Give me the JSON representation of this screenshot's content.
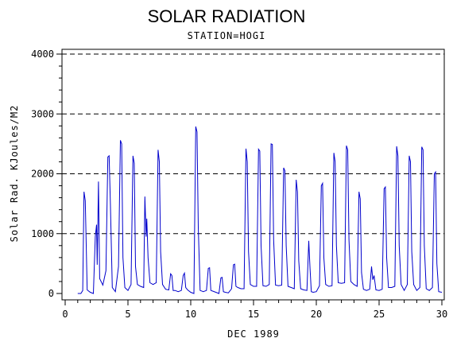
{
  "chart_data": {
    "type": "line",
    "title": "SOLAR RADIATION",
    "subtitle": "STATION=HOGI",
    "xlabel": "DEC 1989",
    "ylabel": "Solar Rad. KJoules/M2",
    "xlim": [
      0,
      30
    ],
    "ylim": [
      0,
      4000
    ],
    "xticks": [
      0,
      5,
      10,
      15,
      20,
      25,
      30
    ],
    "xtick_labels": [
      "0",
      "5",
      "10",
      "15",
      "20",
      "25",
      "30"
    ],
    "yticks": [
      0,
      1000,
      2000,
      3000,
      4000
    ],
    "ytick_labels": [
      "0",
      "1000",
      "2000",
      "3000",
      "4000"
    ],
    "grid": "horizontal dashed",
    "line_color": "#0000cc",
    "series": [
      {
        "x": [
          1.0,
          1.25,
          1.4,
          1.5,
          1.6,
          1.75,
          2.0,
          2.25,
          2.4,
          2.5,
          2.55,
          2.6,
          2.65,
          2.75,
          3.0,
          3.25,
          3.4,
          3.5,
          3.6,
          3.75,
          4.0,
          4.25,
          4.4,
          4.5,
          4.6,
          4.75,
          5.0,
          5.25,
          5.4,
          5.5,
          5.6,
          5.75,
          6.0,
          6.25,
          6.35,
          6.45,
          6.5,
          6.6,
          6.75,
          7.0,
          7.25,
          7.4,
          7.5,
          7.6,
          7.75,
          8.0,
          8.25,
          8.4,
          8.5,
          8.6,
          8.75,
          9.0,
          9.25,
          9.4,
          9.5,
          9.6,
          9.75,
          10.0,
          10.25,
          10.4,
          10.5,
          10.6,
          10.75,
          11.0,
          11.25,
          11.4,
          11.5,
          11.6,
          11.75,
          12.0,
          12.25,
          12.4,
          12.5,
          12.6,
          12.75,
          13.0,
          13.25,
          13.4,
          13.5,
          13.6,
          13.75,
          14.0,
          14.25,
          14.4,
          14.5,
          14.6,
          14.75,
          15.0,
          15.25,
          15.4,
          15.5,
          15.6,
          15.75,
          16.0,
          16.25,
          16.4,
          16.5,
          16.6,
          16.75,
          17.0,
          17.25,
          17.4,
          17.5,
          17.6,
          17.75,
          18.0,
          18.25,
          18.4,
          18.5,
          18.6,
          18.75,
          19.0,
          19.25,
          19.4,
          19.5,
          19.6,
          19.75,
          20.0,
          20.25,
          20.4,
          20.5,
          20.6,
          20.75,
          21.0,
          21.25,
          21.4,
          21.5,
          21.6,
          21.75,
          22.0,
          22.25,
          22.4,
          22.5,
          22.6,
          22.75,
          23.0,
          23.25,
          23.4,
          23.5,
          23.6,
          23.75,
          24.0,
          24.25,
          24.4,
          24.5,
          24.6,
          24.75,
          25.0,
          25.25,
          25.4,
          25.5,
          25.6,
          25.75,
          26.0,
          26.25,
          26.4,
          26.5,
          26.6,
          26.75,
          27.0,
          27.25,
          27.4,
          27.5,
          27.6,
          27.75,
          28.0,
          28.25,
          28.4,
          28.5,
          28.6,
          28.75,
          29.0,
          29.25,
          29.4,
          29.5,
          29.6,
          29.75,
          30.0
        ],
        "y": [
          0,
          0,
          50,
          1700,
          1550,
          60,
          20,
          0,
          950,
          1150,
          480,
          1150,
          1870,
          250,
          140,
          380,
          2280,
          2300,
          1500,
          100,
          30,
          450,
          2560,
          2500,
          600,
          100,
          50,
          150,
          2300,
          2180,
          450,
          150,
          120,
          100,
          1620,
          950,
          1250,
          600,
          180,
          150,
          180,
          2400,
          2200,
          700,
          150,
          70,
          60,
          330,
          300,
          50,
          50,
          30,
          50,
          300,
          340,
          100,
          60,
          20,
          0,
          2790,
          2700,
          1100,
          50,
          30,
          50,
          420,
          430,
          50,
          40,
          20,
          0,
          260,
          270,
          30,
          20,
          10,
          80,
          480,
          490,
          120,
          100,
          80,
          80,
          2420,
          2200,
          700,
          150,
          120,
          120,
          2410,
          2380,
          800,
          130,
          120,
          150,
          2500,
          2490,
          900,
          140,
          130,
          140,
          2100,
          2050,
          800,
          120,
          100,
          80,
          1900,
          1700,
          550,
          80,
          60,
          50,
          880,
          420,
          30,
          20,
          30,
          130,
          1800,
          1840,
          600,
          150,
          120,
          130,
          2350,
          2200,
          800,
          180,
          170,
          180,
          2470,
          2400,
          900,
          200,
          150,
          120,
          1700,
          1580,
          350,
          70,
          50,
          70,
          450,
          230,
          300,
          60,
          50,
          70,
          1750,
          1780,
          600,
          100,
          100,
          120,
          2460,
          2300,
          800,
          150,
          50,
          150,
          2300,
          2200,
          700,
          150,
          50,
          100,
          2450,
          2400,
          800,
          80,
          50,
          100,
          2000,
          2030,
          500,
          30,
          20
        ]
      }
    ]
  }
}
